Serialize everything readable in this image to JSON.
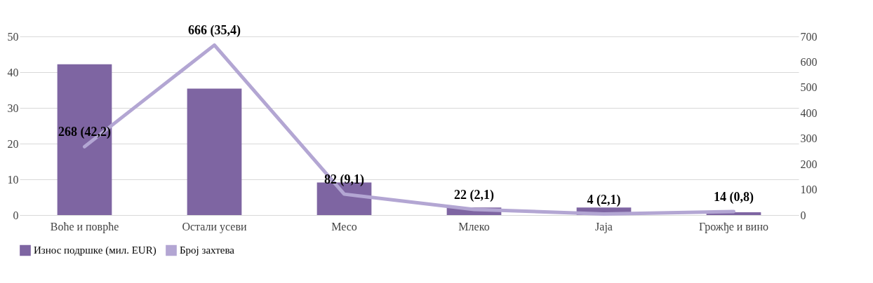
{
  "chart_data": {
    "type": "bar",
    "categories": [
      "Воће и поврће",
      "Остали усеви",
      "Месо",
      "Млеко",
      "Јаја",
      "Грожђе и вино"
    ],
    "series": [
      {
        "name": "Износ подршке (мил. EUR)",
        "color": "#7e65a2",
        "values": [
          42.2,
          35.4,
          9.1,
          2.1,
          2.1,
          0.8
        ]
      },
      {
        "name": "Број захтева",
        "type": "line",
        "axis": "y2",
        "color": "#b3a6d3",
        "values": [
          268,
          666,
          82,
          22,
          4,
          14
        ],
        "value_labels": [
          "268 (42,2)",
          "666 (35,4)",
          "82 (9,1)",
          "22 (2,1)",
          "4 (2,1)",
          "14 (0,8)"
        ]
      }
    ],
    "ylim": [
      0,
      50
    ],
    "yticks": [
      0,
      10,
      20,
      30,
      40,
      50
    ],
    "y2lim": [
      0,
      700
    ],
    "y2ticks": [
      0,
      100,
      200,
      300,
      400,
      500,
      600,
      700
    ],
    "grid": "y",
    "legend": "bottom"
  }
}
